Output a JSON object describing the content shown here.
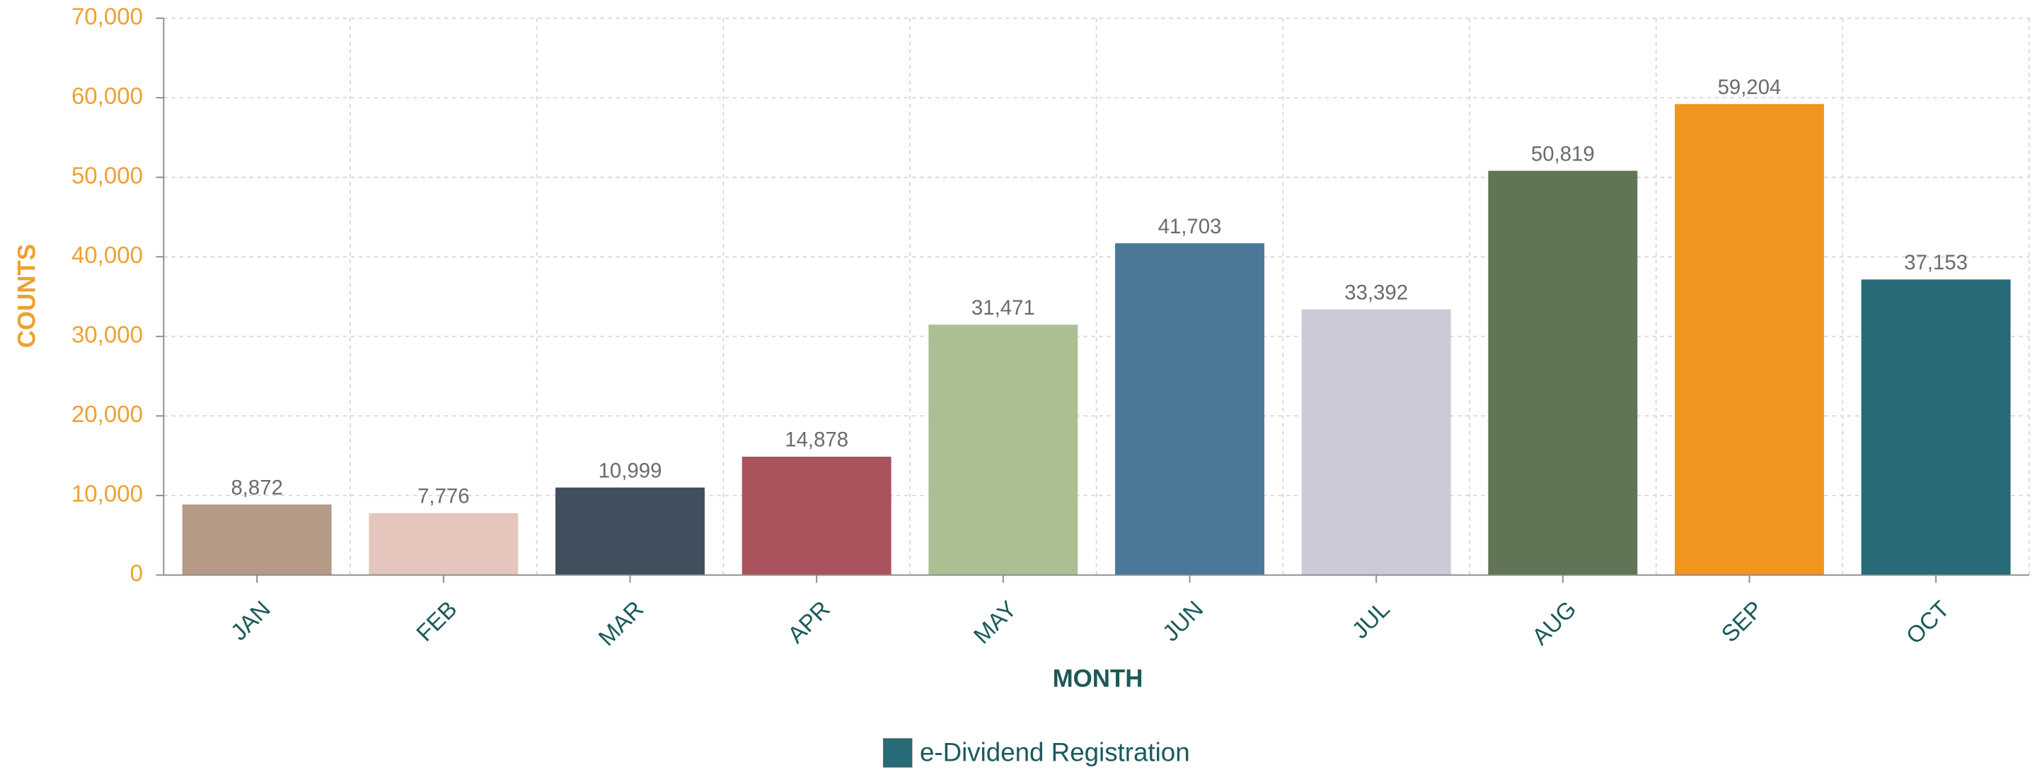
{
  "chart_data": {
    "type": "bar",
    "x_label": "MONTH",
    "y_label": "COUNTS",
    "categories": [
      "JAN",
      "FEB",
      "MAR",
      "APR",
      "MAY",
      "JUN",
      "JUL",
      "AUG",
      "SEP",
      "OCT"
    ],
    "series": [
      {
        "name": "e-Dividend Registration",
        "color": "#266b77",
        "values": [
          8872,
          7776,
          10999,
          14878,
          31471,
          41703,
          33392,
          50819,
          59204,
          37153
        ],
        "value_labels": [
          "8,872",
          "7,776",
          "10,999",
          "14,878",
          "31,471",
          "41,703",
          "33,392",
          "50,819",
          "59,204",
          "37,153"
        ],
        "colors": [
          "#b59a87",
          "#e4c6bd",
          "#414e5e",
          "#a9535c",
          "#abc092",
          "#4b7899",
          "#cbcad7",
          "#607555",
          "#f2951f",
          "#266b77"
        ]
      }
    ],
    "ylim": [
      0,
      70000
    ],
    "yticks": [
      0,
      {
        "value": 10000,
        "label": "10,000"
      },
      {
        "value": 20000,
        "label": "20,000"
      },
      {
        "value": 30000,
        "label": "30,000"
      },
      {
        "value": 40000,
        "label": "40,000"
      },
      {
        "value": 50000,
        "label": "50,000"
      },
      {
        "value": 60000,
        "label": "60,000"
      },
      {
        "value": 70000,
        "label": "70,000"
      }
    ],
    "grid": true
  }
}
